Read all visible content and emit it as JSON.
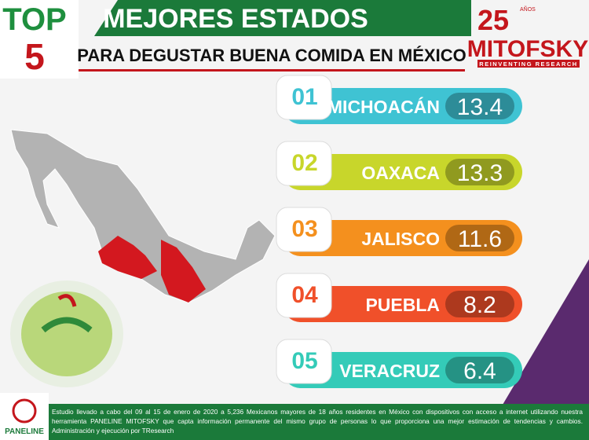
{
  "header": {
    "top": "TOP",
    "top_number": "5",
    "title": "MEJORES ESTADOS",
    "subtitle": "PARA DEGUSTAR BUENA COMIDA EN MÉXICO"
  },
  "logo": {
    "years": "25",
    "years_label": "AÑOS",
    "name": "MITOFSKY",
    "tagline": "REINVENTING RESEARCH"
  },
  "ranking": [
    {
      "rank": "01",
      "state": "MICHOACÁN",
      "score": 13.4,
      "color": "#3fc3d3"
    },
    {
      "rank": "02",
      "state": "OAXACA",
      "score": 13.3,
      "color": "#c8d62b"
    },
    {
      "rank": "03",
      "state": "JALISCO",
      "score": 11.6,
      "color": "#f4901e"
    },
    {
      "rank": "04",
      "state": "PUEBLA",
      "score": 8.2,
      "color": "#f0502a"
    },
    {
      "rank": "05",
      "state": "VERACRUZ",
      "score": 6.4,
      "color": "#34cbb8"
    }
  ],
  "footer": {
    "brand": "PANELINE",
    "note": "Estudio llevado a cabo del 09 al 15 de enero de 2020 a 5,236 Mexicanos mayores de 18 años residentes en México con dispositivos con acceso a internet utilizando nuestra herramienta PANELINE MITOFSKY que capta información permanente del mismo grupo de personas lo que proporciona una mejor estimación de tendencias y cambios. Administración y ejecución por TResearch"
  }
}
